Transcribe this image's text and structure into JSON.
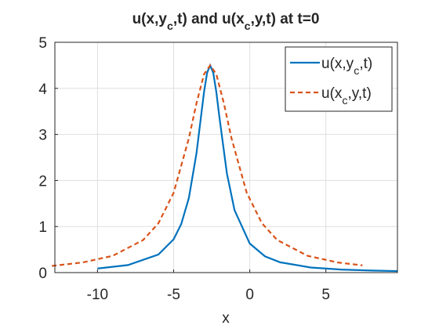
{
  "chart_data": {
    "type": "line",
    "title": "u(x,y_c,t) and u(x_c,y,t) at t=0",
    "xlabel": "x",
    "xlim": [
      -12.8,
      9.7
    ],
    "ylim": [
      0,
      5
    ],
    "xticks": [
      -10,
      -5,
      0,
      5
    ],
    "yticks": [
      0,
      1,
      2,
      3,
      4,
      5
    ],
    "grid": true,
    "legend": "northeast",
    "series": [
      {
        "name": "u(x,y_c,t)",
        "color": "#0072bd",
        "dash": false,
        "x": [
          -10,
          -8,
          -6,
          -5,
          -4.5,
          -4,
          -3.5,
          -3,
          -2.8,
          -2.6,
          -2.4,
          -2.2,
          -2,
          -1.5,
          -1,
          0,
          1,
          2,
          4,
          6,
          8,
          9.7
        ],
        "values": [
          0.089,
          0.164,
          0.392,
          0.723,
          1.054,
          1.62,
          2.59,
          3.93,
          4.34,
          4.5,
          4.34,
          3.93,
          3.39,
          2.15,
          1.355,
          0.631,
          0.353,
          0.223,
          0.111,
          0.066,
          0.044,
          0.033
        ]
      },
      {
        "name": "u(x_c,y,t)",
        "color": "#d95319",
        "dash": true,
        "x": [
          -13,
          -11,
          -9,
          -7,
          -6,
          -5,
          -4,
          -3.5,
          -3,
          -2.6,
          -2.2,
          -1.7,
          -1.2,
          -0.2,
          0.8,
          1.8,
          3.8,
          5.8,
          7.4
        ],
        "values": [
          0.145,
          0.219,
          0.364,
          0.708,
          1.071,
          1.733,
          2.916,
          3.676,
          4.31,
          4.5,
          4.31,
          3.676,
          2.916,
          1.733,
          1.071,
          0.708,
          0.364,
          0.219,
          0.157
        ]
      }
    ]
  }
}
